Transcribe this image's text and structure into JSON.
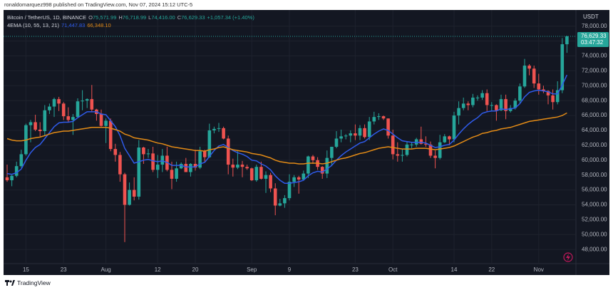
{
  "publisher_line": "ronaldomarquez998 published on TradingView.com, Nov 07, 2024 15:12 UTC-5",
  "brand": "TradingView",
  "chart_data": {
    "type": "candlestick",
    "title": "Bitcoin / TetherUS, 1D, BINANCE",
    "ohlc_header": [
      {
        "prefix": "O",
        "value": "75,571.99"
      },
      {
        "prefix": "H",
        "value": "76,718.99"
      },
      {
        "prefix": "L",
        "value": "74,416.00"
      },
      {
        "prefix": "C",
        "value": "76,629.33"
      }
    ],
    "change_label": "+1,057.34 (+1.40%)",
    "indicator": "4EMA (10, 55, 13, 21)",
    "y_unit": "USDT",
    "last_price_label": "76,629.33",
    "countdown": "03:47:32",
    "up_color": "#26a69a",
    "down_color": "#ef5350",
    "x": [
      null,
      null,
      null,
      null,
      "15",
      null,
      null,
      null,
      null,
      null,
      null,
      null,
      "23",
      null,
      null,
      null,
      null,
      null,
      null,
      null,
      null,
      "Aug",
      null,
      null,
      null,
      null,
      null,
      null,
      null,
      null,
      null,
      null,
      "12",
      null,
      null,
      null,
      null,
      null,
      null,
      null,
      "20",
      null,
      null,
      null,
      null,
      null,
      null,
      null,
      null,
      null,
      null,
      null,
      "Sep",
      null,
      null,
      null,
      null,
      null,
      null,
      null,
      "9",
      null,
      null,
      null,
      null,
      null,
      null,
      null,
      null,
      null,
      null,
      null,
      null,
      null,
      "23",
      null,
      null,
      null,
      null,
      null,
      null,
      null,
      "Oct",
      null,
      null,
      null,
      null,
      null,
      null,
      null,
      null,
      null,
      null,
      null,
      null,
      "14",
      null,
      null,
      null,
      null,
      null,
      null,
      null,
      "22",
      null,
      null,
      null,
      null,
      null,
      null,
      null,
      null,
      null,
      "Nov",
      null,
      null,
      null,
      null,
      null,
      null
    ],
    "open": [
      57700,
      57300,
      57900,
      59200,
      60800,
      64700,
      65100,
      64100,
      63900,
      66700,
      67200,
      68200,
      67600,
      65900,
      65400,
      65800,
      67900,
      68000,
      68200,
      66800,
      66200,
      64600,
      65300,
      61500,
      60700,
      58100,
      54000,
      56000,
      55100,
      61700,
      60800,
      60900,
      58700,
      59400,
      60600,
      58700,
      57500,
      58900,
      59500,
      58400,
      59500,
      59000,
      61200,
      60400,
      64000,
      64200,
      64300,
      62900,
      59400,
      59000,
      59400,
      59100,
      58900,
      57300,
      59100,
      57500,
      58000,
      56200,
      53900,
      54200,
      54900,
      57100,
      57700,
      57400,
      58200,
      60500,
      60000,
      59100,
      58200,
      60300,
      61800,
      62900,
      63200,
      63300,
      63600,
      63300,
      64300,
      63100,
      65200,
      65800,
      65900,
      65600,
      63300,
      60800,
      60600,
      60700,
      62100,
      62100,
      62800,
      62200,
      62100,
      60600,
      60300,
      62400,
      63200,
      62800,
      66000,
      67000,
      67600,
      67400,
      68400,
      68400,
      69000,
      67400,
      67400,
      66700,
      68200,
      66600,
      67000,
      68000,
      69900,
      72700,
      72300,
      70300,
      69500,
      69300,
      68700,
      67800,
      69400,
      75571.99
    ],
    "high": [
      59400,
      58000,
      59800,
      61400,
      64900,
      65400,
      66100,
      65100,
      67400,
      67600,
      68400,
      68500,
      67800,
      67100,
      66200,
      68300,
      69400,
      68300,
      70100,
      66900,
      66800,
      65600,
      65600,
      62200,
      61100,
      58300,
      57000,
      57700,
      62700,
      61800,
      61500,
      61800,
      60700,
      61500,
      61800,
      59800,
      59800,
      59700,
      60300,
      59600,
      61400,
      61800,
      61400,
      64900,
      64500,
      65000,
      64500,
      63300,
      60200,
      61200,
      59900,
      59400,
      59000,
      59400,
      59800,
      58500,
      58300,
      56900,
      54800,
      55300,
      58100,
      58000,
      57900,
      58600,
      60600,
      60700,
      60400,
      59200,
      61300,
      61800,
      63900,
      64100,
      63500,
      64000,
      64800,
      64700,
      64800,
      65800,
      66500,
      66300,
      66000,
      65600,
      64100,
      62400,
      61500,
      62500,
      62400,
      63000,
      64500,
      63200,
      62500,
      61300,
      63400,
      63500,
      63300,
      66500,
      67900,
      68400,
      67900,
      68900,
      68700,
      69400,
      69500,
      67800,
      67500,
      68800,
      68800,
      67400,
      68300,
      70300,
      73600,
      72900,
      72700,
      71600,
      70000,
      69400,
      69500,
      70600,
      76400,
      76718.99
    ],
    "low": [
      57100,
      56500,
      57700,
      59000,
      60600,
      62400,
      63900,
      63200,
      63300,
      66200,
      65800,
      66600,
      65400,
      65100,
      63400,
      65700,
      66700,
      67000,
      66500,
      65300,
      64500,
      62300,
      61200,
      59800,
      57100,
      49000,
      53900,
      54600,
      54700,
      59500,
      60300,
      58400,
      57600,
      58400,
      58500,
      56100,
      57100,
      58800,
      58400,
      57800,
      58600,
      58800,
      59800,
      60300,
      63600,
      63800,
      62800,
      58100,
      57800,
      58800,
      57700,
      58700,
      57200,
      57100,
      57400,
      55600,
      55700,
      52600,
      53800,
      53600,
      54600,
      56400,
      55500,
      57300,
      57600,
      59500,
      58700,
      57500,
      57600,
      59200,
      61600,
      62400,
      62800,
      62400,
      62700,
      62700,
      62900,
      62700,
      64800,
      65400,
      65400,
      62900,
      60100,
      59800,
      59800,
      60500,
      61600,
      61800,
      62100,
      61800,
      60300,
      58900,
      60100,
      62300,
      62000,
      62400,
      64800,
      66700,
      66700,
      67100,
      68000,
      68100,
      66600,
      66600,
      65300,
      66600,
      65500,
      66400,
      66800,
      67600,
      69700,
      71400,
      69700,
      68800,
      69000,
      67500,
      66800,
      67500,
      69000,
      74416
    ],
    "close": [
      57300,
      57900,
      59200,
      60800,
      64700,
      65100,
      64100,
      63900,
      66700,
      67200,
      68200,
      67600,
      65900,
      65400,
      65800,
      67900,
      68000,
      68200,
      66800,
      66200,
      64600,
      65300,
      61500,
      60700,
      58100,
      54000,
      56000,
      55100,
      61700,
      60800,
      60900,
      58700,
      59400,
      60600,
      58700,
      57500,
      58900,
      59500,
      58400,
      59500,
      59000,
      61200,
      60400,
      64000,
      64200,
      64300,
      62900,
      59400,
      59000,
      59400,
      59100,
      58900,
      57300,
      59100,
      57500,
      58000,
      56200,
      53900,
      54200,
      54900,
      57100,
      57700,
      57400,
      58200,
      60500,
      60000,
      59100,
      58200,
      60300,
      61800,
      62900,
      63200,
      63300,
      63600,
      63300,
      64300,
      63100,
      65200,
      65800,
      65900,
      65600,
      63300,
      60800,
      60600,
      60700,
      62100,
      62100,
      62800,
      62200,
      62100,
      60600,
      60300,
      62400,
      63200,
      62800,
      66000,
      67000,
      67600,
      67400,
      68400,
      68400,
      69000,
      67400,
      67400,
      66700,
      68200,
      66600,
      67000,
      68000,
      69900,
      72700,
      72300,
      70300,
      69500,
      69300,
      68700,
      67800,
      69400,
      75572,
      76629.33
    ],
    "series": [
      {
        "color": "#2f5bea",
        "last_label": "71,447.83",
        "values": [
          58200,
          58100,
          58300,
          58800,
          60000,
          61000,
          61700,
          62100,
          62900,
          63700,
          64500,
          65000,
          65100,
          65100,
          65200,
          65700,
          66100,
          66500,
          66500,
          66500,
          66200,
          66100,
          65300,
          64500,
          63300,
          61600,
          60600,
          59600,
          59800,
          60000,
          60100,
          59900,
          59800,
          59900,
          59700,
          59300,
          59300,
          59300,
          59100,
          59100,
          59100,
          59500,
          59700,
          60500,
          61300,
          61900,
          62100,
          61700,
          61300,
          61000,
          60800,
          60500,
          60000,
          59900,
          59500,
          59200,
          58700,
          57900,
          57300,
          56900,
          56900,
          57000,
          57100,
          57300,
          57900,
          58300,
          58500,
          58400,
          58800,
          59300,
          60000,
          60600,
          61100,
          61500,
          61900,
          62300,
          62500,
          63000,
          63500,
          63900,
          64200,
          64000,
          63500,
          63000,
          62600,
          62500,
          62400,
          62400,
          62400,
          62300,
          62000,
          61700,
          61800,
          62000,
          62100,
          62700,
          63500,
          64200,
          64800,
          65300,
          65700,
          66300,
          66500,
          66600,
          66600,
          66900,
          66800,
          66900,
          67000,
          67600,
          68500,
          69100,
          69300,
          69400,
          69300,
          69200,
          68900,
          68900,
          70100,
          71447.83
        ]
      },
      {
        "color": "#e38b16",
        "last_label": "66,348.10",
        "values": [
          62900,
          62700,
          62600,
          62600,
          62700,
          62900,
          63000,
          63100,
          63300,
          63500,
          63700,
          63800,
          63900,
          63900,
          64000,
          64100,
          64200,
          64300,
          64400,
          64400,
          64400,
          64400,
          64300,
          64100,
          63900,
          63500,
          63300,
          63000,
          62900,
          62800,
          62700,
          62500,
          62300,
          62200,
          62000,
          61800,
          61700,
          61600,
          61500,
          61400,
          61300,
          61300,
          61200,
          61400,
          61500,
          61700,
          61800,
          61600,
          61400,
          61300,
          61200,
          61100,
          60900,
          60800,
          60700,
          60500,
          60300,
          60000,
          59800,
          59700,
          59600,
          59600,
          59500,
          59500,
          59600,
          59600,
          59600,
          59500,
          59600,
          59800,
          60000,
          60200,
          60300,
          60500,
          60700,
          60900,
          61000,
          61200,
          61400,
          61600,
          61700,
          61800,
          61700,
          61600,
          61500,
          61500,
          61500,
          61600,
          61600,
          61600,
          61500,
          61400,
          61500,
          61600,
          61700,
          61900,
          62200,
          62500,
          62800,
          63100,
          63300,
          63600,
          63700,
          63900,
          64000,
          64200,
          64300,
          64400,
          64600,
          64800,
          65000,
          65200,
          65300,
          65400,
          65500,
          65600,
          65700,
          65800,
          66000,
          66348.1
        ]
      }
    ],
    "ylim": [
      46100,
      79600
    ],
    "yticks": [
      {
        "value": 48000,
        "label": "48,000.00"
      },
      {
        "value": 50000,
        "label": "50,000.00"
      },
      {
        "value": 52000,
        "label": "52,000.00"
      },
      {
        "value": 54000,
        "label": "54,000.00"
      },
      {
        "value": 56000,
        "label": "56,000.00"
      },
      {
        "value": 58000,
        "label": "58,000.00"
      },
      {
        "value": 60000,
        "label": "60,000.00"
      },
      {
        "value": 62000,
        "label": "62,000.00"
      },
      {
        "value": 64000,
        "label": "64,000.00"
      },
      {
        "value": 66000,
        "label": "66,000.00"
      },
      {
        "value": 68000,
        "label": "68,000.00"
      },
      {
        "value": 70000,
        "label": "70,000.00"
      },
      {
        "value": 72000,
        "label": "72,000.00"
      },
      {
        "value": 74000,
        "label": "74,000.00"
      },
      {
        "value": 76000,
        "label": "76,000.00"
      },
      {
        "value": 78000,
        "label": "78,000.00"
      }
    ],
    "grid": true
  }
}
